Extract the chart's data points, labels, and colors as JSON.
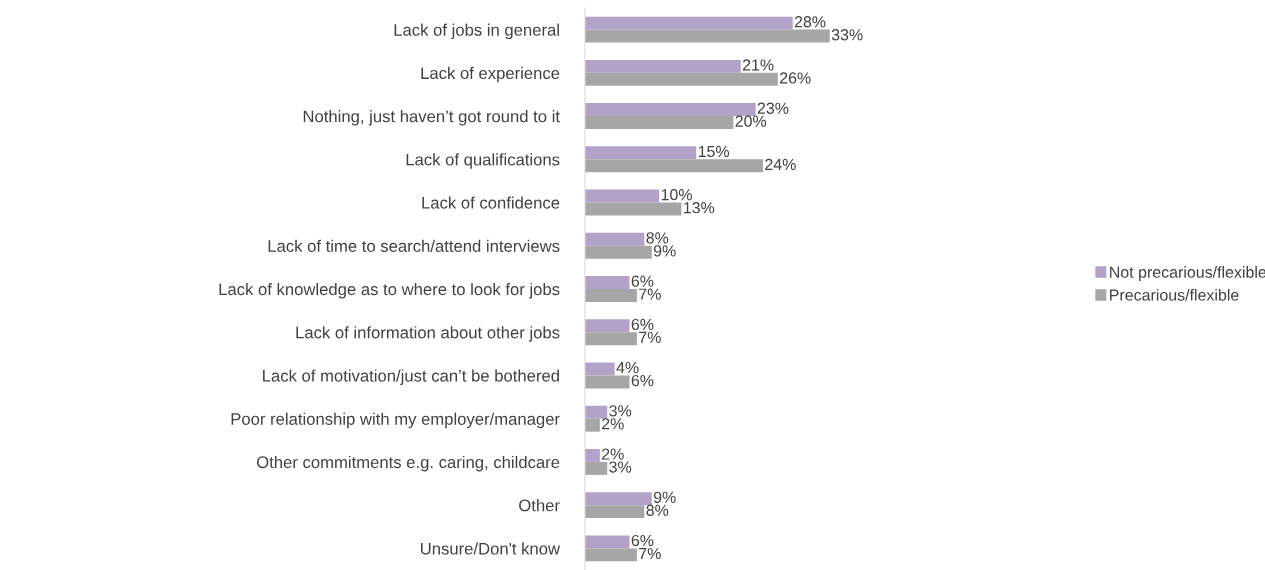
{
  "chart_data": {
    "type": "bar",
    "orientation": "horizontal",
    "categories": [
      "Lack of jobs in general",
      "Lack of experience",
      "Nothing, just haven’t got round to it",
      "Lack of qualifications",
      "Lack of confidence",
      "Lack of time to search/attend interviews",
      "Lack of knowledge as to where to look for jobs",
      "Lack of information about other jobs",
      "Lack of motivation/just can’t be bothered",
      "Poor relationship with my employer/manager",
      "Other commitments e.g. caring, childcare",
      "Other",
      "Unsure/Don't know"
    ],
    "series": [
      {
        "name": "Not precarious/flexible",
        "color": "#b3a2c7",
        "values": [
          28,
          21,
          23,
          15,
          10,
          8,
          6,
          6,
          4,
          3,
          2,
          9,
          6
        ],
        "value_labels": [
          "28%",
          "21%",
          "23%",
          "15%",
          "10%",
          "8%",
          "6%",
          "6%",
          "4%",
          "3%",
          "2%",
          "9%",
          "6%"
        ]
      },
      {
        "name": "Precarious/flexible",
        "color": "#a6a6a6",
        "values": [
          33,
          26,
          20,
          24,
          13,
          9,
          7,
          7,
          6,
          2,
          3,
          8,
          7
        ],
        "value_labels": [
          "33%",
          "26%",
          "20%",
          "24%",
          "13%",
          "9%",
          "7%",
          "7%",
          "6%",
          "2%",
          "3%",
          "8%",
          "7%"
        ]
      }
    ],
    "legend": "right",
    "grid": false
  }
}
